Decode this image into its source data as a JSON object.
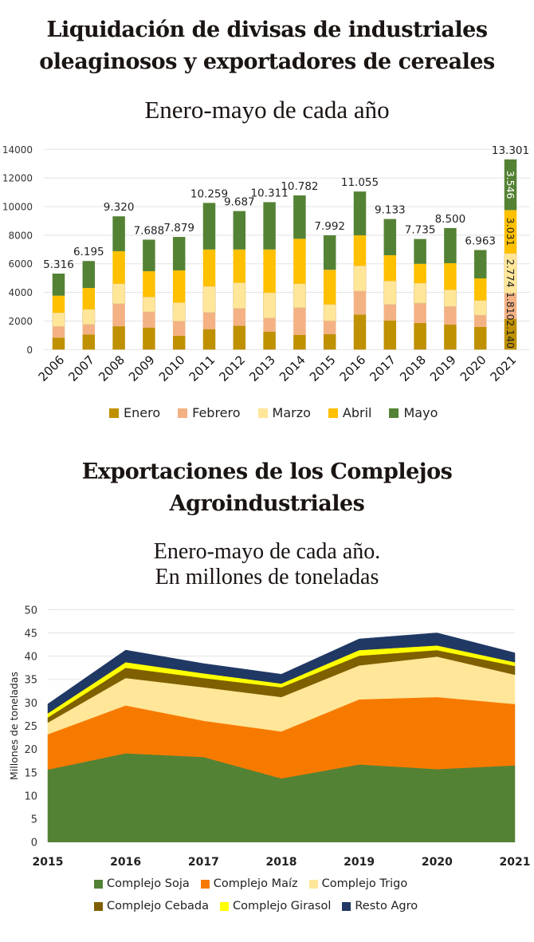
{
  "header1": {
    "title_line1": "Liquidación de divisas de industriales",
    "title_line2": "oleaginosos y exportadores de cereales",
    "subtitle": "Enero-mayo de cada año"
  },
  "header2": {
    "title_line1": "Exportaciones de los Complejos",
    "title_line2": "Agroindustriales",
    "subtitle_line1": "Enero-mayo de cada año.",
    "subtitle_line2": "En millones de toneladas"
  },
  "chart_data": [
    {
      "type": "bar",
      "stacked": true,
      "title": "Liquidación de divisas de industriales oleaginosos y exportadores de cereales",
      "subtitle": "Enero-mayo de cada año",
      "xlabel": "",
      "ylabel": "",
      "ylim": [
        0,
        14000
      ],
      "yticks": [
        0,
        2000,
        4000,
        6000,
        8000,
        10000,
        12000,
        14000
      ],
      "grid": true,
      "legend_position": "bottom",
      "categories": [
        "2006",
        "2007",
        "2008",
        "2009",
        "2010",
        "2011",
        "2012",
        "2013",
        "2014",
        "2015",
        "2016",
        "2017",
        "2018",
        "2019",
        "2020",
        "2021"
      ],
      "series": [
        {
          "name": "Enero",
          "color": "#BF9000",
          "values": [
            840,
            1060,
            1630,
            1540,
            970,
            1430,
            1670,
            1260,
            1020,
            1090,
            2450,
            2040,
            1860,
            1760,
            1580,
            2140
          ]
        },
        {
          "name": "Febrero",
          "color": "#F4B183",
          "values": [
            780,
            700,
            1580,
            1100,
            1020,
            1170,
            1210,
            950,
            1910,
            920,
            1640,
            1120,
            1390,
            1250,
            830,
            1810
          ]
        },
        {
          "name": "Marzo",
          "color": "#FFE699",
          "values": [
            960,
            1060,
            1400,
            1040,
            1300,
            1820,
            1800,
            1770,
            1680,
            1150,
            1770,
            1640,
            1400,
            1170,
            1030,
            2774
          ]
        },
        {
          "name": "Abril",
          "color": "#FFC000",
          "values": [
            1190,
            1490,
            2270,
            1800,
            2250,
            2580,
            2320,
            3020,
            3140,
            2420,
            2130,
            1800,
            1350,
            1860,
            1540,
            3031
          ]
        },
        {
          "name": "Mayo",
          "color": "#548235",
          "values": [
            1546,
            1885,
            2440,
            2208,
            2339,
            3259,
            2687,
            3311,
            3032,
            2412,
            3065,
            2533,
            1735,
            2460,
            1983,
            3546
          ]
        }
      ],
      "total_labels": [
        "5.316",
        "6.195",
        "9.320",
        "7.688",
        "7.879",
        "10.259",
        "9.687",
        "10.311",
        "10.782",
        "7.992",
        "11.055",
        "9.133",
        "7.735",
        "8.500",
        "6.963",
        "13.301"
      ],
      "totals": [
        5316,
        6195,
        9320,
        7688,
        7879,
        10259,
        9687,
        10311,
        10782,
        7992,
        11055,
        9133,
        7735,
        8500,
        6963,
        13301
      ],
      "segment_labels_2021": [
        "2.140",
        "1.810",
        "2.774",
        "3.031",
        "3.546"
      ]
    },
    {
      "type": "area",
      "stacked": true,
      "title": "Exportaciones de los Complejos Agroindustriales",
      "subtitle": "Enero-mayo de cada año. En millones de toneladas",
      "xlabel": "",
      "ylabel": "Millones de toneladas",
      "ylim": [
        0,
        50
      ],
      "yticks": [
        0,
        5,
        10,
        15,
        20,
        25,
        30,
        35,
        40,
        45,
        50
      ],
      "grid": true,
      "legend_position": "bottom",
      "x": [
        "2015",
        "2016",
        "2017",
        "2018",
        "2019",
        "2020",
        "2021"
      ],
      "series": [
        {
          "name": "Complejo Soja",
          "color": "#548235",
          "values": [
            15.6,
            19.1,
            18.3,
            13.7,
            16.7,
            15.7,
            16.5
          ]
        },
        {
          "name": "Complejo Maíz",
          "color": "#F77A00",
          "values": [
            7.6,
            10.3,
            7.8,
            10.1,
            14.0,
            15.5,
            13.2
          ]
        },
        {
          "name": "Complejo Trigo",
          "color": "#FFE699",
          "values": [
            2.5,
            5.9,
            7.2,
            7.4,
            7.3,
            8.7,
            6.3
          ]
        },
        {
          "name": "Complejo Cebada",
          "color": "#7F6000",
          "values": [
            1.1,
            2.2,
            2.0,
            2.1,
            2.1,
            1.4,
            1.9
          ]
        },
        {
          "name": "Complejo Girasol",
          "color": "#FFFF00",
          "values": [
            0.9,
            1.2,
            1.0,
            0.8,
            1.2,
            1.0,
            0.8
          ]
        },
        {
          "name": "Resto Agro",
          "color": "#203864",
          "values": [
            2.0,
            2.6,
            2.1,
            2.0,
            2.4,
            2.7,
            2.0
          ]
        }
      ]
    }
  ]
}
